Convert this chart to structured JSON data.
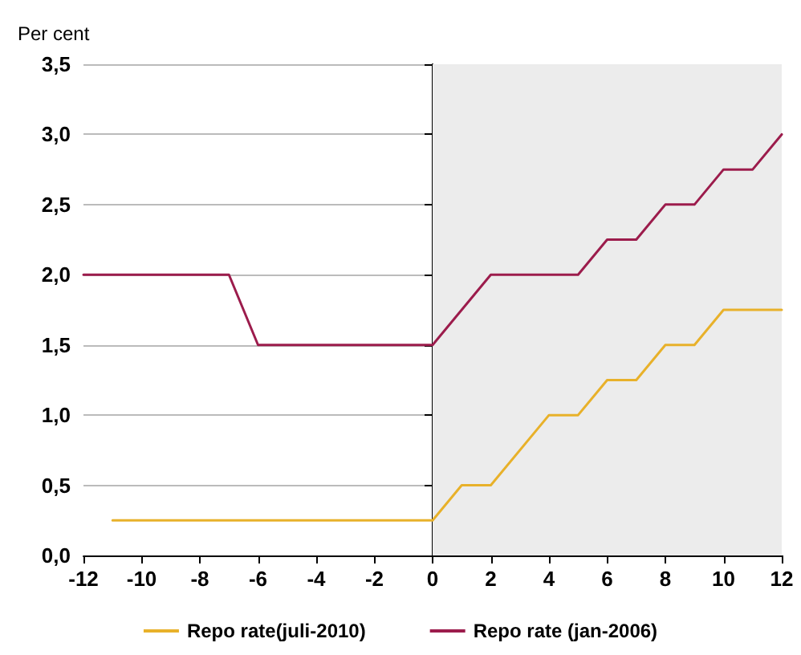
{
  "chart_data": {
    "type": "line",
    "ylabel": "Per cent",
    "series": [
      {
        "name": "Repo rate(juli-2010)",
        "color": "#e8b12a",
        "x": [
          -11,
          0,
          1,
          2,
          4,
          5,
          6,
          7,
          8,
          9,
          10,
          12
        ],
        "values": [
          0.25,
          0.25,
          0.5,
          0.5,
          1.0,
          1.0,
          1.25,
          1.25,
          1.5,
          1.5,
          1.75,
          1.75
        ]
      },
      {
        "name": "Repo rate (jan-2006)",
        "color": "#9c1c4c",
        "x": [
          -12,
          -7,
          -6,
          0,
          2,
          5,
          6,
          7,
          8,
          9,
          10,
          11,
          12
        ],
        "values": [
          2.0,
          2.0,
          1.5,
          1.5,
          2.0,
          2.0,
          2.25,
          2.25,
          2.5,
          2.5,
          2.75,
          2.75,
          3.0
        ]
      }
    ],
    "xlim": [
      -12,
      12
    ],
    "xticks": [
      -12,
      -10,
      -8,
      -6,
      -4,
      -2,
      0,
      2,
      4,
      6,
      8,
      10,
      12
    ],
    "ylim": [
      0,
      3.5
    ],
    "yticks": [
      {
        "value": 0,
        "label": "0,0"
      },
      {
        "value": 0.5,
        "label": "0,5"
      },
      {
        "value": 1,
        "label": "1,0"
      },
      {
        "value": 1.5,
        "label": "1,5"
      },
      {
        "value": 2,
        "label": "2,0"
      },
      {
        "value": 2.5,
        "label": "2,5"
      },
      {
        "value": 3,
        "label": "3,0"
      },
      {
        "value": 3.5,
        "label": "3,5"
      }
    ],
    "bands": [
      {
        "axis": "x",
        "from": 0,
        "to": 12,
        "color": "#ececec"
      }
    ],
    "grid": "y",
    "legend": "bottom",
    "marker": "none",
    "line_style": "solid"
  }
}
